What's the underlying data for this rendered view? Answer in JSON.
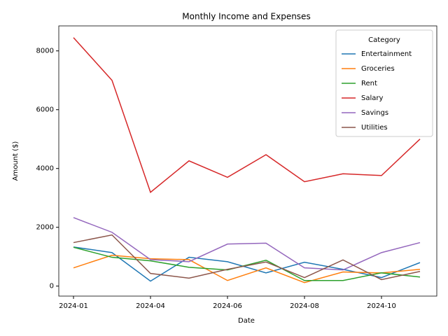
{
  "chart_data": {
    "type": "line",
    "title": "Monthly Income and Expenses",
    "xlabel": "Date",
    "ylabel": "Amount ($)",
    "legend_title": "Category",
    "legend": "upper right",
    "categories": [
      "2024-01",
      null,
      "2024-04",
      null,
      "2024-06",
      null,
      "2024-08",
      null,
      "2024-10",
      null
    ],
    "series": [
      {
        "name": "Entertainment",
        "color": "#1f77b4",
        "values": [
          1330,
          1140,
          170,
          980,
          830,
          450,
          810,
          570,
          290,
          800
        ]
      },
      {
        "name": "Groceries",
        "color": "#ff7f0e",
        "values": [
          620,
          1050,
          930,
          900,
          190,
          620,
          120,
          480,
          450,
          570
        ]
      },
      {
        "name": "Rent",
        "color": "#2ca02c",
        "values": [
          1320,
          980,
          860,
          640,
          550,
          880,
          190,
          190,
          450,
          310
        ]
      },
      {
        "name": "Salary",
        "color": "#d62728",
        "values": [
          8450,
          7000,
          3190,
          4260,
          3700,
          4470,
          3550,
          3820,
          3760,
          5000
        ]
      },
      {
        "name": "Savings",
        "color": "#9467bd",
        "values": [
          2330,
          1830,
          900,
          830,
          1430,
          1460,
          620,
          550,
          1140,
          1480
        ]
      },
      {
        "name": "Utilities",
        "color": "#8c564b",
        "values": [
          1480,
          1740,
          430,
          270,
          570,
          820,
          290,
          890,
          220,
          500
        ]
      }
    ],
    "ylim": [
      -340,
      8850
    ],
    "yticks": [
      0,
      2000,
      4000,
      6000,
      8000
    ]
  }
}
